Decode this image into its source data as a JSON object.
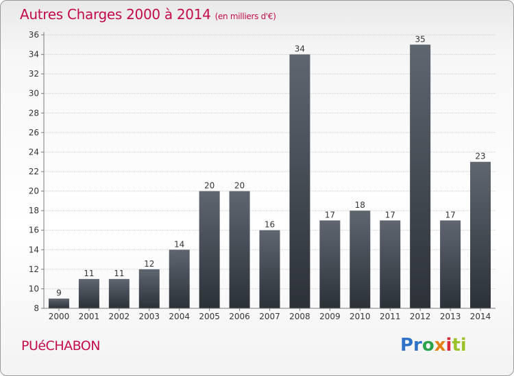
{
  "title": "Autres Charges 2000 à 2014",
  "unit": "(en milliers d'€)",
  "commune": "PUéCHABON",
  "logo": {
    "text": "Proxiti",
    "letters": [
      "Pr",
      "o",
      "x",
      "i",
      "ti"
    ]
  },
  "colors": {
    "title": "#c20a4c",
    "bar_top": "#5f6670",
    "bar_bottom": "#2c3138",
    "axis": "#7a7a7a",
    "grid": "#cccccc"
  },
  "chart_data": {
    "type": "bar",
    "categories": [
      "2000",
      "2001",
      "2002",
      "2003",
      "2004",
      "2005",
      "2006",
      "2007",
      "2008",
      "2009",
      "2010",
      "2011",
      "2012",
      "2013",
      "2014"
    ],
    "values": [
      9,
      11,
      11,
      12,
      14,
      20,
      20,
      16,
      34,
      17,
      18,
      17,
      35,
      17,
      23
    ],
    "ylim": [
      8,
      36
    ],
    "yticks": [
      8,
      10,
      12,
      14,
      16,
      18,
      20,
      22,
      24,
      26,
      28,
      30,
      32,
      34,
      36
    ],
    "grid": true,
    "data_labels": true
  }
}
